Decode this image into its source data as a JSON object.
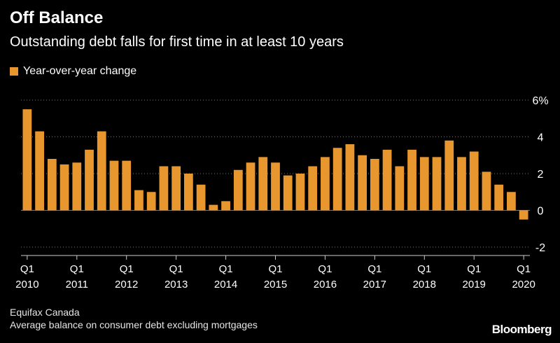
{
  "header": {
    "title": "Off Balance",
    "subtitle": "Outstanding debt falls for first time in at least 10 years"
  },
  "footer": {
    "source": "Equifax Canada",
    "note": "Average balance on consumer debt excluding mortgages",
    "brand": "Bloomberg"
  },
  "colors": {
    "bar": "#e8962e",
    "background": "#000000",
    "grid": "#777777",
    "text": "#ffffff"
  },
  "chart_data": {
    "type": "bar",
    "legend": {
      "position": "top-left"
    },
    "grid": true,
    "ylim": [
      -2,
      6
    ],
    "yticks": [
      {
        "value": -2,
        "label": "-2"
      },
      {
        "value": 0,
        "label": "0"
      },
      {
        "value": 2,
        "label": "2"
      },
      {
        "value": 4,
        "label": "4"
      },
      {
        "value": 6,
        "label": "6%"
      }
    ],
    "xtick_labels": [
      {
        "index": 0,
        "quarter": "Q1",
        "year": "2010"
      },
      {
        "index": 4,
        "quarter": "Q1",
        "year": "2011"
      },
      {
        "index": 8,
        "quarter": "Q1",
        "year": "2012"
      },
      {
        "index": 12,
        "quarter": "Q1",
        "year": "2013"
      },
      {
        "index": 16,
        "quarter": "Q1",
        "year": "2014"
      },
      {
        "index": 20,
        "quarter": "Q1",
        "year": "2015"
      },
      {
        "index": 24,
        "quarter": "Q1",
        "year": "2016"
      },
      {
        "index": 28,
        "quarter": "Q1",
        "year": "2017"
      },
      {
        "index": 32,
        "quarter": "Q1",
        "year": "2018"
      },
      {
        "index": 36,
        "quarter": "Q1",
        "year": "2019"
      },
      {
        "index": 40,
        "quarter": "Q1",
        "year": "2020"
      }
    ],
    "categories": [
      "Q1 2010",
      "Q2 2010",
      "Q3 2010",
      "Q4 2010",
      "Q1 2011",
      "Q2 2011",
      "Q3 2011",
      "Q4 2011",
      "Q1 2012",
      "Q2 2012",
      "Q3 2012",
      "Q4 2012",
      "Q1 2013",
      "Q2 2013",
      "Q3 2013",
      "Q4 2013",
      "Q1 2014",
      "Q2 2014",
      "Q3 2014",
      "Q4 2014",
      "Q1 2015",
      "Q2 2015",
      "Q3 2015",
      "Q4 2015",
      "Q1 2016",
      "Q2 2016",
      "Q3 2016",
      "Q4 2016",
      "Q1 2017",
      "Q2 2017",
      "Q3 2017",
      "Q4 2017",
      "Q1 2018",
      "Q2 2018",
      "Q3 2018",
      "Q4 2018",
      "Q1 2019",
      "Q2 2019",
      "Q3 2019",
      "Q4 2019",
      "Q1 2020"
    ],
    "series": [
      {
        "name": "Year-over-year change",
        "values": [
          5.5,
          4.3,
          2.8,
          2.5,
          2.6,
          3.3,
          4.3,
          2.7,
          2.7,
          1.1,
          1.0,
          2.4,
          2.4,
          2.0,
          1.4,
          0.3,
          0.5,
          2.2,
          2.6,
          2.9,
          2.6,
          1.9,
          2.0,
          2.4,
          2.9,
          3.4,
          3.6,
          3.0,
          2.8,
          3.3,
          2.4,
          3.3,
          2.9,
          2.9,
          3.8,
          2.9,
          3.2,
          2.1,
          1.4,
          1.0,
          -0.5
        ]
      }
    ]
  }
}
